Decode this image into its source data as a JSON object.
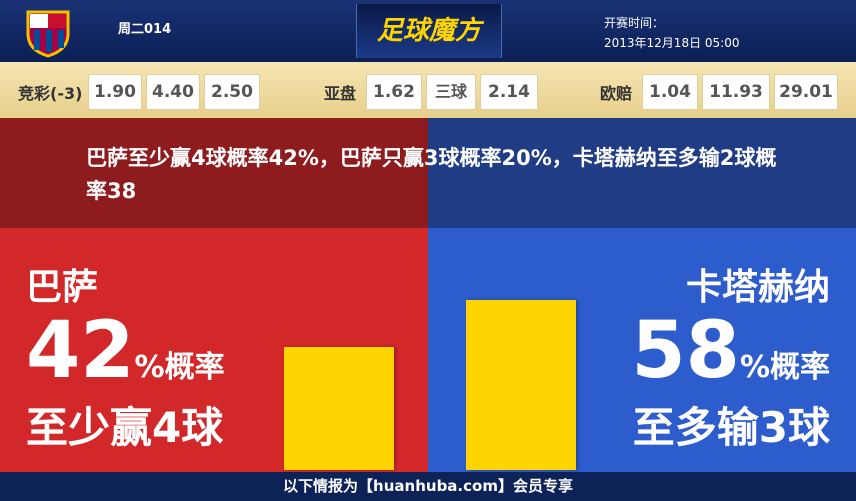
{
  "header": {
    "match_no": "周二014",
    "logo": "足球魔方",
    "kickoff_label": "开赛时间：",
    "kickoff_time": "2013年12月18日 05:00"
  },
  "odds": {
    "jingcai_label": "竞彩(-3)",
    "jingcai": [
      "1.90",
      "4.40",
      "2.50"
    ],
    "yapan_label": "亚盘",
    "yapan": "1.62",
    "sanqiu_label": "三球",
    "sanqiu": "2.14",
    "oupei_label": "欧赔",
    "oupei": [
      "1.04",
      "11.93",
      "29.01"
    ]
  },
  "headline": "巴萨至少赢4球概率42%，巴萨只赢3球概率20%，卡塔赫纳至多输2球概率38",
  "panels": [
    {
      "team": "巴萨",
      "percent": 42,
      "suffix": "%概率",
      "outcome": "至少赢4球"
    },
    {
      "team": "卡塔赫纳",
      "percent": 58,
      "suffix": "%概率",
      "outcome": "至多输3球"
    }
  ],
  "footer": "以下情报为【huanhuba.com】会员专享"
}
